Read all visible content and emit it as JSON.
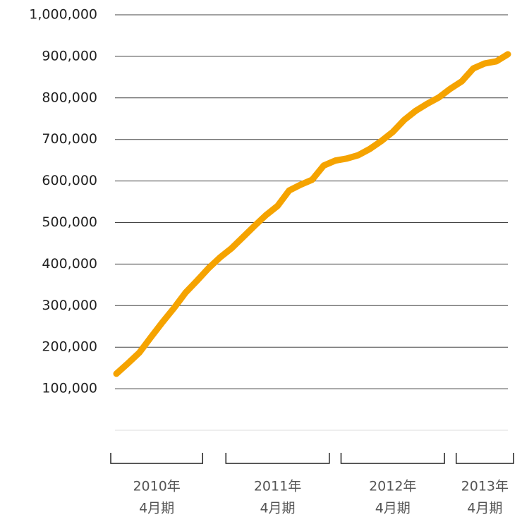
{
  "chart_data": {
    "type": "line",
    "categories": [
      null,
      null,
      null,
      null,
      null,
      null,
      null,
      null,
      null,
      null,
      null,
      null,
      null,
      null,
      null,
      null,
      null,
      null,
      null,
      null,
      null,
      null,
      null,
      null,
      null,
      null,
      null,
      null,
      null,
      null,
      null,
      null,
      null,
      null,
      null
    ],
    "series": [
      {
        "color": "#f5a300",
        "values": [
          136000,
          161000,
          187000,
          224000,
          260000,
          294000,
          331000,
          360000,
          390000,
          416000,
          438000,
          465000,
          492000,
          518000,
          540000,
          577000,
          591000,
          603000,
          637000,
          649000,
          654000,
          662000,
          677000,
          696000,
          718000,
          747000,
          769000,
          786000,
          801000,
          822000,
          840000,
          871000,
          883000,
          888000,
          905000
        ]
      }
    ],
    "ylim": [
      0,
      1000000
    ],
    "yticks": [
      {
        "value": 100000,
        "label": "100,000"
      },
      {
        "value": 200000,
        "label": "200,000"
      },
      {
        "value": 300000,
        "label": "300,000"
      },
      {
        "value": 400000,
        "label": "400,000"
      },
      {
        "value": 500000,
        "label": "500,000"
      },
      {
        "value": 600000,
        "label": "600,000"
      },
      {
        "value": 700000,
        "label": "700,000"
      },
      {
        "value": 800000,
        "label": "800,000"
      },
      {
        "value": 900000,
        "label": "900,000"
      },
      {
        "value": 1000000,
        "label": "1,000,000"
      }
    ],
    "grid": true,
    "period_groups": [
      {
        "label": [
          "2010年",
          "4月期"
        ],
        "from": 0,
        "to": 7
      },
      {
        "label": [
          "2011年",
          "4月期"
        ],
        "from": 10,
        "to": 18
      },
      {
        "label": [
          "2012年",
          "4月期"
        ],
        "from": 20,
        "to": 28
      },
      {
        "label": [
          "2013年",
          "4月期"
        ],
        "from": 30,
        "to": 34
      }
    ]
  }
}
